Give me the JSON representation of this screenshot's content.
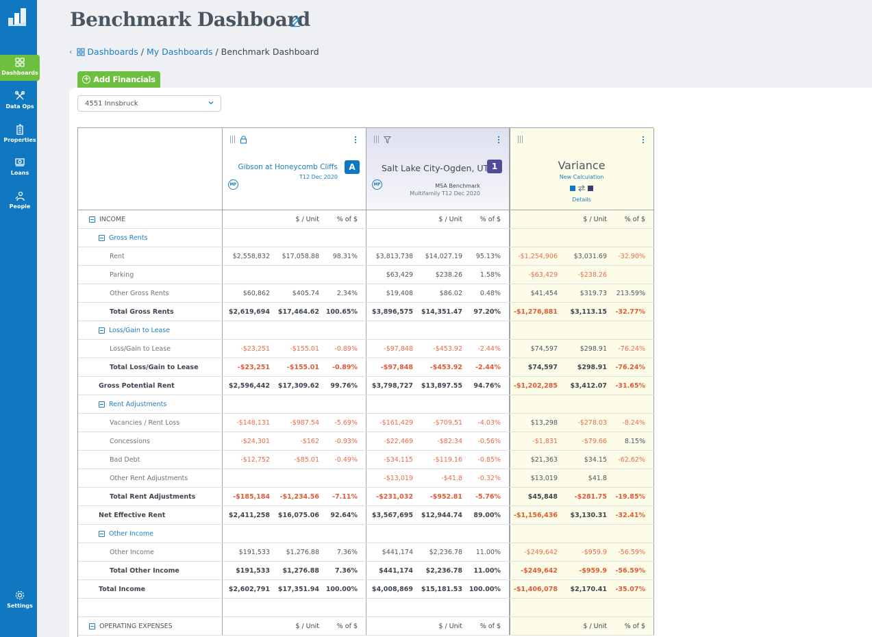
{
  "app": {
    "nav": [
      {
        "label": "Dashboards",
        "icon": "grid-icon",
        "active": true
      },
      {
        "label": "Data Ops",
        "icon": "tools-icon",
        "active": false
      },
      {
        "label": "Properties",
        "icon": "building-icon",
        "active": false
      },
      {
        "label": "Loans",
        "icon": "money-icon",
        "active": false
      },
      {
        "label": "People",
        "icon": "people-icon",
        "active": false
      },
      {
        "label": "Settings",
        "icon": "gear-icon",
        "active": false
      }
    ]
  },
  "header": {
    "title": "Benchmark Dashboard",
    "breadcrumb": [
      "Dashboards",
      "My Dashboards",
      "Benchmark Dashboard"
    ],
    "add_button": "Add Financials",
    "property_select": "4551 Innsbruck"
  },
  "columns": {
    "a": {
      "name": "Gibson at Honeycomb Cliffs",
      "period": "T12 Dec 2020",
      "badge": "A",
      "badge_color": "#1078c0",
      "tag": "MF"
    },
    "b": {
      "name": "Salt Lake City-Ogden, UT",
      "subtitle": "MSA Benchmark",
      "period": "Multifamily T12 Dec 2020",
      "badge": "1",
      "badge_color": "#514c9a",
      "tag": "MF"
    },
    "v": {
      "title": "Variance",
      "subtitle": "New Calculation",
      "details": "Details"
    }
  },
  "table": {
    "unit_header": "$ / Unit",
    "pct_header": "% of $",
    "rows": [
      {
        "label": "INCOME",
        "kind": "section",
        "a": [
          "",
          "$ / Unit",
          "% of $"
        ],
        "b": [
          "",
          "$ / Unit",
          "% of $"
        ],
        "v": [
          "",
          "$ / Unit",
          "% of $"
        ]
      },
      {
        "label": "Gross Rents",
        "kind": "group",
        "a": [
          "",
          "",
          ""
        ],
        "b": [
          "",
          "",
          ""
        ],
        "v": [
          "",
          "",
          ""
        ]
      },
      {
        "label": "Rent",
        "kind": "item",
        "a": [
          "$2,558,832",
          "$17,058.88",
          "98.31%"
        ],
        "b": [
          "$3,813,738",
          "$14,027.19",
          "95.13%"
        ],
        "v": [
          "-$1,254,906",
          "$3,031.69",
          "-32.90%"
        ]
      },
      {
        "label": "Parking",
        "kind": "item",
        "a": [
          "",
          "",
          ""
        ],
        "b": [
          "$63,429",
          "$238.26",
          "1.58%"
        ],
        "v": [
          "-$63,429",
          "-$238.26",
          ""
        ]
      },
      {
        "label": "Other Gross Rents",
        "kind": "item",
        "a": [
          "$60,862",
          "$405.74",
          "2.34%"
        ],
        "b": [
          "$19,408",
          "$86.02",
          "0.48%"
        ],
        "v": [
          "$41,454",
          "$319.73",
          "213.59%"
        ]
      },
      {
        "label": "Total Gross Rents",
        "kind": "total",
        "a": [
          "$2,619,694",
          "$17,464.62",
          "100.65%"
        ],
        "b": [
          "$3,896,575",
          "$14,351.47",
          "97.20%"
        ],
        "v": [
          "-$1,276,881",
          "$3,113.15",
          "-32.77%"
        ]
      },
      {
        "label": "Loss/Gain to Lease",
        "kind": "group",
        "a": [
          "",
          "",
          ""
        ],
        "b": [
          "",
          "",
          ""
        ],
        "v": [
          "",
          "",
          ""
        ]
      },
      {
        "label": "Loss/Gain to Lease",
        "kind": "item",
        "a": [
          "-$23,251",
          "-$155.01",
          "-0.89%"
        ],
        "b": [
          "-$97,848",
          "-$453.92",
          "-2.44%"
        ],
        "v": [
          "$74,597",
          "$298.91",
          "-76.24%"
        ]
      },
      {
        "label": "Total Loss/Gain to Lease",
        "kind": "total",
        "a": [
          "-$23,251",
          "-$155.01",
          "-0.89%"
        ],
        "b": [
          "-$97,848",
          "-$453.92",
          "-2.44%"
        ],
        "v": [
          "$74,597",
          "$298.91",
          "-76.24%"
        ]
      },
      {
        "label": "Gross Potential Rent",
        "kind": "subtotal",
        "a": [
          "$2,596,442",
          "$17,309.62",
          "99.76%"
        ],
        "b": [
          "$3,798,727",
          "$13,897.55",
          "94.76%"
        ],
        "v": [
          "-$1,202,285",
          "$3,412.07",
          "-31.65%"
        ]
      },
      {
        "label": "Rent Adjustments",
        "kind": "group",
        "a": [
          "",
          "",
          ""
        ],
        "b": [
          "",
          "",
          ""
        ],
        "v": [
          "",
          "",
          ""
        ]
      },
      {
        "label": "Vacancies / Rent Loss",
        "kind": "item",
        "a": [
          "-$148,131",
          "-$987.54",
          "-5.69%"
        ],
        "b": [
          "-$161,429",
          "-$709.51",
          "-4.03%"
        ],
        "v": [
          "$13,298",
          "-$278.03",
          "-8.24%"
        ]
      },
      {
        "label": "Concessions",
        "kind": "item",
        "a": [
          "-$24,301",
          "-$162",
          "-0.93%"
        ],
        "b": [
          "-$22,469",
          "-$82.34",
          "-0.56%"
        ],
        "v": [
          "-$1,831",
          "-$79.66",
          "8.15%"
        ]
      },
      {
        "label": "Bad Debt",
        "kind": "item",
        "a": [
          "-$12,752",
          "-$85.01",
          "-0.49%"
        ],
        "b": [
          "-$34,115",
          "-$119.16",
          "-0.85%"
        ],
        "v": [
          "$21,363",
          "$34.15",
          "-62.62%"
        ]
      },
      {
        "label": "Other Rent Adjustments",
        "kind": "item",
        "a": [
          "",
          "",
          ""
        ],
        "b": [
          "-$13,019",
          "-$41.8",
          "-0.32%"
        ],
        "v": [
          "$13,019",
          "$41.8",
          ""
        ]
      },
      {
        "label": "Total Rent Adjustments",
        "kind": "total",
        "a": [
          "-$185,184",
          "-$1,234.56",
          "-7.11%"
        ],
        "b": [
          "-$231,032",
          "-$952.81",
          "-5.76%"
        ],
        "v": [
          "$45,848",
          "-$281.75",
          "-19.85%"
        ]
      },
      {
        "label": "Net Effective Rent",
        "kind": "subtotal",
        "a": [
          "$2,411,258",
          "$16,075.06",
          "92.64%"
        ],
        "b": [
          "$3,567,695",
          "$12,944.74",
          "89.00%"
        ],
        "v": [
          "-$1,156,436",
          "$3,130.31",
          "-32.41%"
        ]
      },
      {
        "label": "Other Income",
        "kind": "group",
        "a": [
          "",
          "",
          ""
        ],
        "b": [
          "",
          "",
          ""
        ],
        "v": [
          "",
          "",
          ""
        ]
      },
      {
        "label": "Other Income",
        "kind": "item",
        "a": [
          "$191,533",
          "$1,276.88",
          "7.36%"
        ],
        "b": [
          "$441,174",
          "$2,236.78",
          "11.00%"
        ],
        "v": [
          "-$249,642",
          "-$959.9",
          "-56.59%"
        ]
      },
      {
        "label": "Total Other Income",
        "kind": "total",
        "a": [
          "$191,533",
          "$1,276.88",
          "7.36%"
        ],
        "b": [
          "$441,174",
          "$2,236.78",
          "11.00%"
        ],
        "v": [
          "-$249,642",
          "-$959.9",
          "-56.59%"
        ]
      },
      {
        "label": "Total Income",
        "kind": "subtotal",
        "a": [
          "$2,602,791",
          "$17,351.94",
          "100.00%"
        ],
        "b": [
          "$4,008,869",
          "$15,181.53",
          "100.00%"
        ],
        "v": [
          "-$1,406,078",
          "$2,170.41",
          "-35.07%"
        ]
      },
      {
        "label": "",
        "kind": "blank",
        "a": [
          "",
          "",
          ""
        ],
        "b": [
          "",
          "",
          ""
        ],
        "v": [
          "",
          "",
          ""
        ]
      },
      {
        "label": "OPERATING EXPENSES",
        "kind": "section",
        "a": [
          "",
          "$ / Unit",
          "% of $"
        ],
        "b": [
          "",
          "$ / Unit",
          "% of $"
        ],
        "v": [
          "",
          "$ / Unit",
          "% of $"
        ]
      }
    ]
  },
  "colors": {
    "brand": "#1078c0",
    "accent_green": "#6cbf3f",
    "negative": "#e8694a",
    "variance_bg": "#fdfce8"
  }
}
